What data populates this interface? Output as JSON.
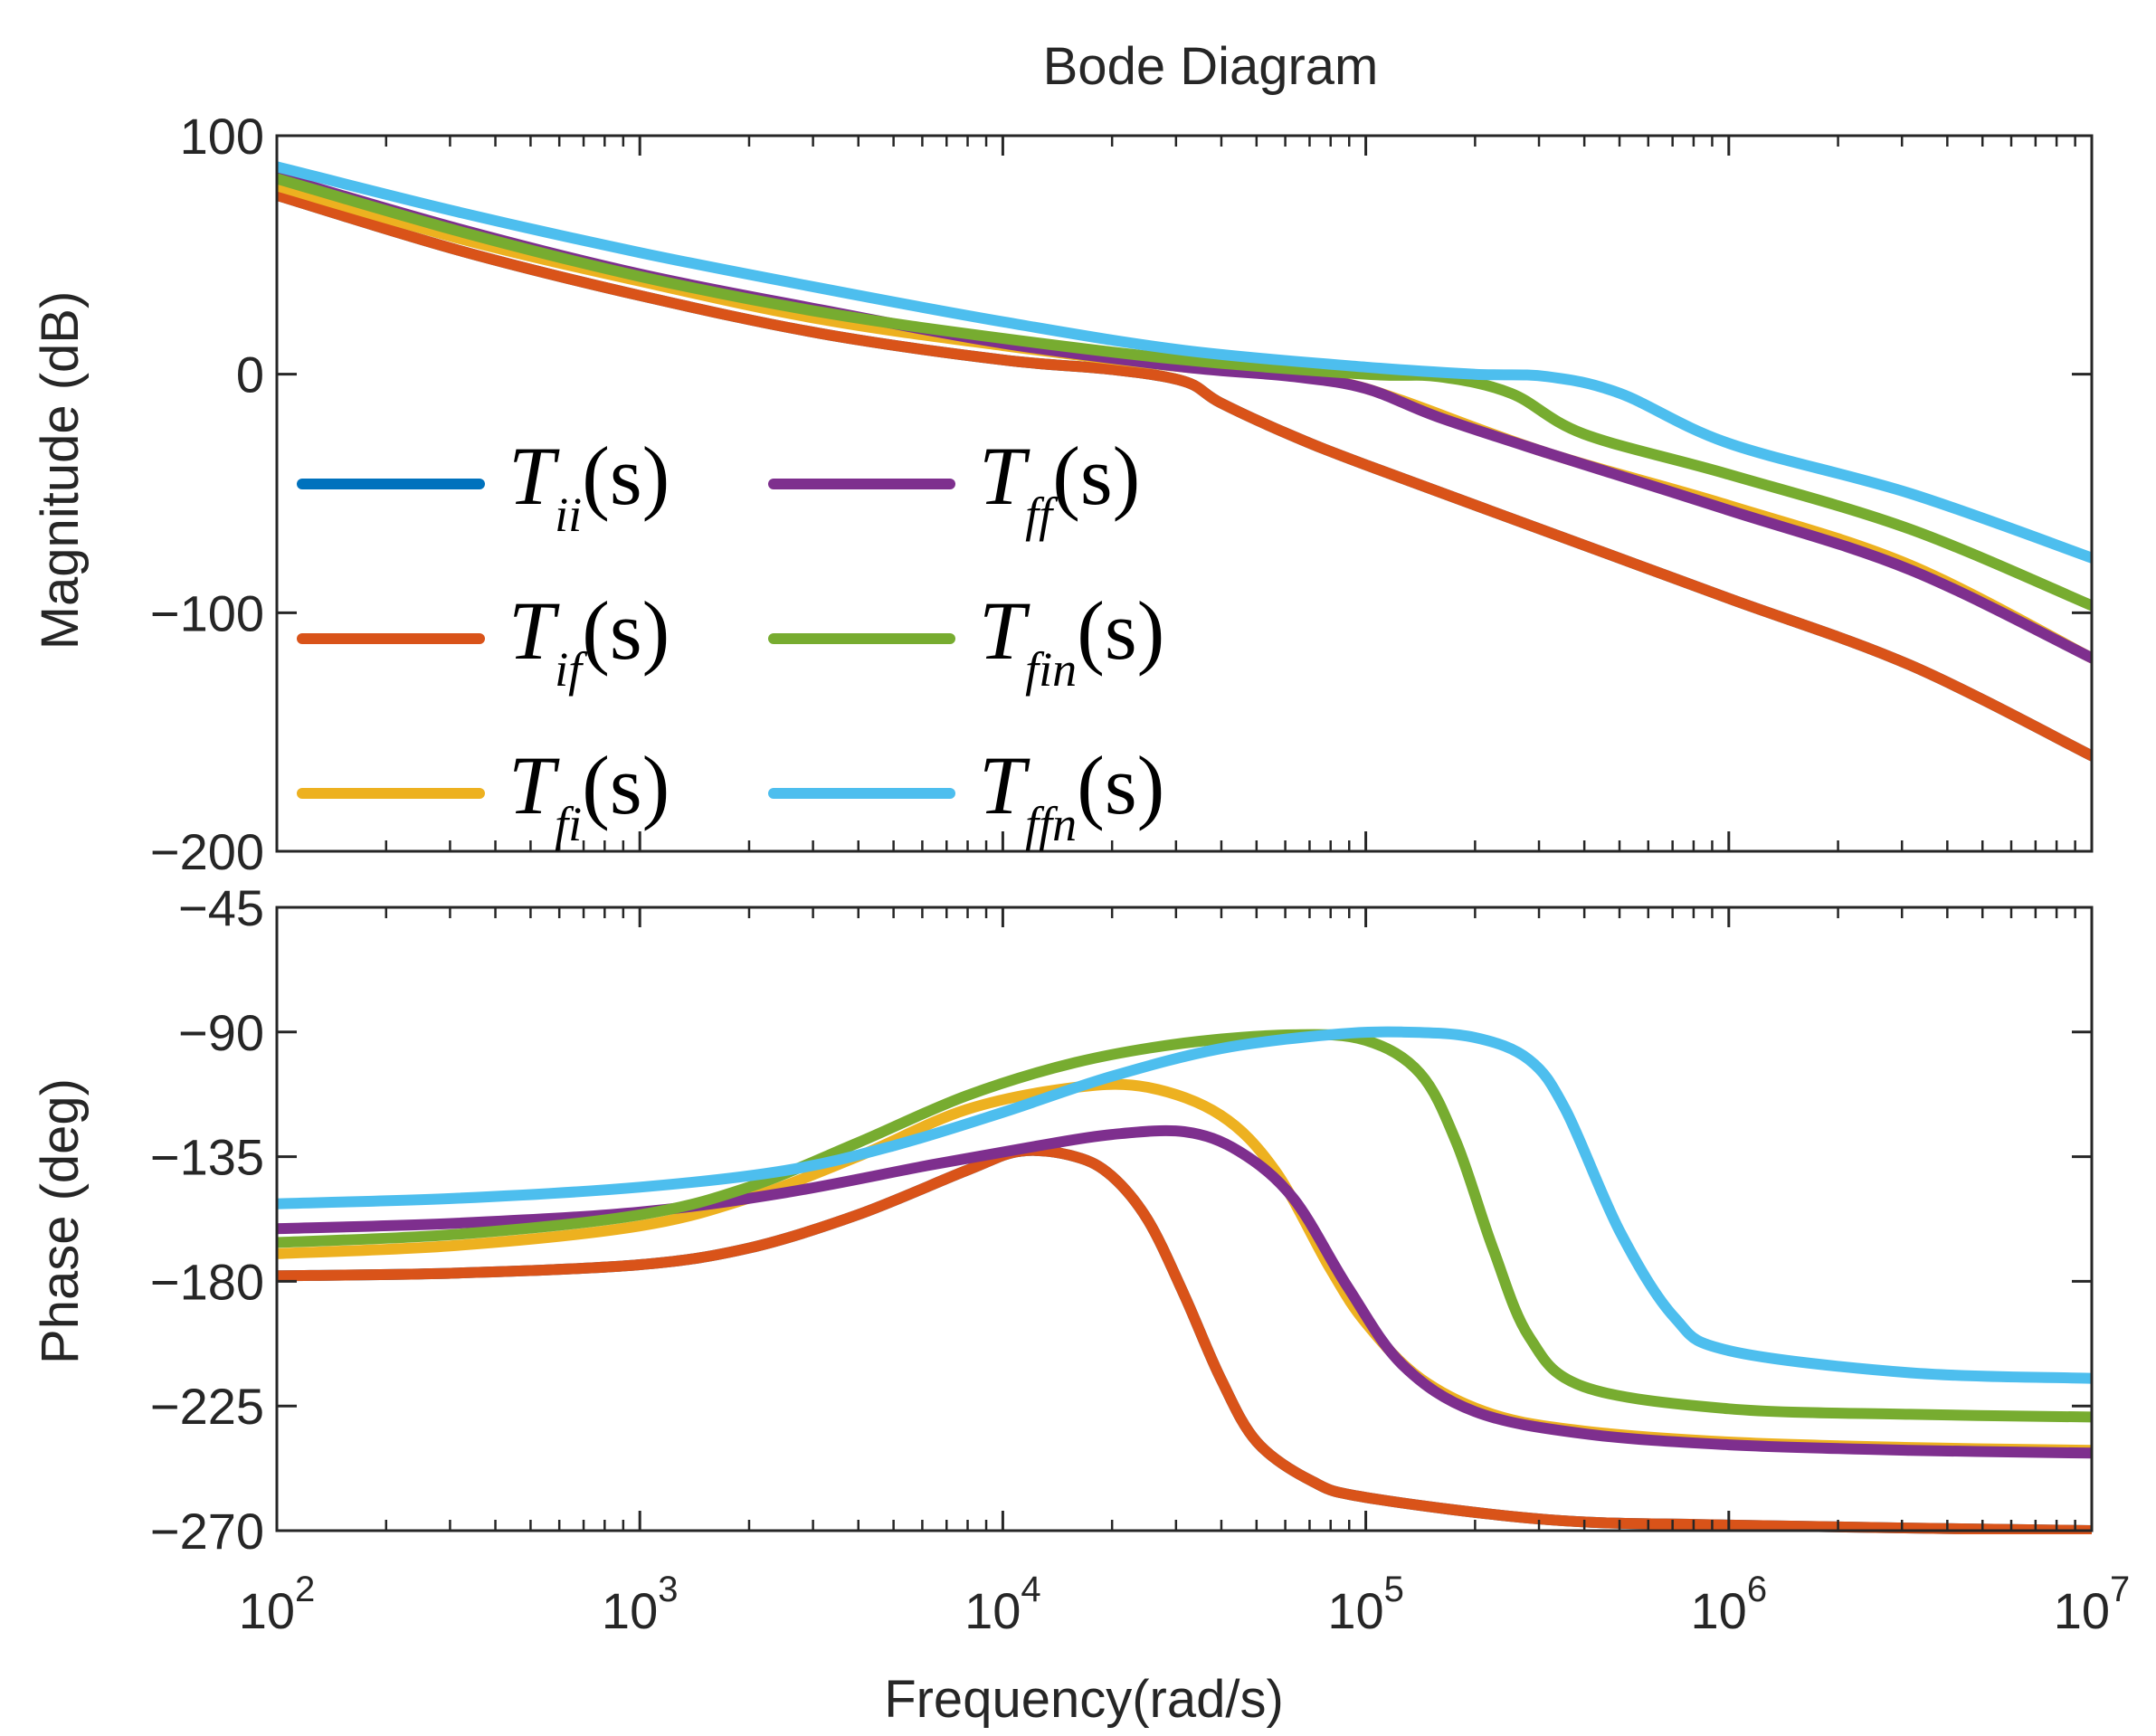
{
  "chart_data": {
    "type": "line",
    "title": "Bode Diagram",
    "xlabel": "Frequency(rad/s)",
    "xscale": "log",
    "xlim": [
      100,
      10000000
    ],
    "x_ticks": [
      {
        "base": "10",
        "exp": "2"
      },
      {
        "base": "10",
        "exp": "3"
      },
      {
        "base": "10",
        "exp": "4"
      },
      {
        "base": "10",
        "exp": "5"
      },
      {
        "base": "10",
        "exp": "6"
      },
      {
        "base": "10",
        "exp": "7"
      }
    ],
    "x_log_exponents": [
      2,
      7
    ],
    "colors": {
      "T_ii": "#0072BD",
      "T_if": "#D95319",
      "T_fi": "#EDB120",
      "T_ff": "#7E2F8E",
      "T_fin": "#77AC30",
      "T_ffn": "#4DBEEE"
    },
    "legend": {
      "placement": "inside-left of magnitude plot, two columns",
      "entries": [
        {
          "key": "T_ii",
          "symbol": "T",
          "sub": "ii",
          "arg": "(s)"
        },
        {
          "key": "T_if",
          "symbol": "T",
          "sub": "if",
          "arg": "(s)"
        },
        {
          "key": "T_fi",
          "symbol": "T",
          "sub": "fi",
          "arg": "(s)"
        },
        {
          "key": "T_ff",
          "symbol": "T",
          "sub": "ff",
          "arg": "(s)"
        },
        {
          "key": "T_fin",
          "symbol": "T",
          "sub": "fin",
          "arg": "(s)"
        },
        {
          "key": "T_ffn",
          "symbol": "T",
          "sub": "ffn",
          "arg": "(s)"
        }
      ]
    },
    "magnitude": {
      "ylabel": "Magnitude (dB)",
      "ylim": [
        -200,
        100
      ],
      "yticks": [
        100,
        0,
        -100,
        -200
      ],
      "ytick_labels": [
        "100",
        "0",
        "−100",
        "−200"
      ],
      "series": [
        {
          "key": "T_ii",
          "points": [
            [
              2,
              75
            ],
            [
              2.5,
              52
            ],
            [
              3,
              33
            ],
            [
              3.5,
              17
            ],
            [
              4,
              6
            ],
            [
              4.3,
              2
            ],
            [
              4.5,
              -3
            ],
            [
              4.6,
              -12
            ],
            [
              4.8,
              -26
            ],
            [
              5,
              -38
            ],
            [
              5.5,
              -66
            ],
            [
              6,
              -94
            ],
            [
              6.5,
              -122
            ],
            [
              7,
              -160
            ]
          ]
        },
        {
          "key": "T_if",
          "points": [
            [
              2,
              75
            ],
            [
              2.5,
              52
            ],
            [
              3,
              33
            ],
            [
              3.5,
              17
            ],
            [
              4,
              6
            ],
            [
              4.3,
              2
            ],
            [
              4.5,
              -3
            ],
            [
              4.6,
              -12
            ],
            [
              4.8,
              -26
            ],
            [
              5,
              -38
            ],
            [
              5.5,
              -66
            ],
            [
              6,
              -94
            ],
            [
              6.5,
              -122
            ],
            [
              7,
              -160
            ]
          ]
        },
        {
          "key": "T_fi",
          "points": [
            [
              2,
              79
            ],
            [
              2.5,
              57
            ],
            [
              3,
              39
            ],
            [
              3.5,
              23
            ],
            [
              4,
              12
            ],
            [
              4.5,
              3
            ],
            [
              4.8,
              0
            ],
            [
              4.95,
              -4
            ],
            [
              5.1,
              -11
            ],
            [
              5.5,
              -33
            ],
            [
              6,
              -55
            ],
            [
              6.5,
              -80
            ],
            [
              7,
              -119
            ]
          ]
        },
        {
          "key": "T_ff",
          "points": [
            [
              2,
              83
            ],
            [
              2.5,
              61
            ],
            [
              3,
              42
            ],
            [
              3.5,
              27
            ],
            [
              4,
              13
            ],
            [
              4.5,
              3
            ],
            [
              4.8,
              -1
            ],
            [
              5,
              -6
            ],
            [
              5.2,
              -18
            ],
            [
              5.5,
              -33
            ],
            [
              6,
              -57
            ],
            [
              6.5,
              -82
            ],
            [
              7,
              -119
            ]
          ]
        },
        {
          "key": "T_fin",
          "points": [
            [
              2,
              82
            ],
            [
              2.5,
              60
            ],
            [
              3,
              41
            ],
            [
              3.5,
              26
            ],
            [
              4,
              15
            ],
            [
              4.5,
              6
            ],
            [
              5,
              0
            ],
            [
              5.2,
              -1
            ],
            [
              5.4,
              -8
            ],
            [
              5.6,
              -25
            ],
            [
              6,
              -42
            ],
            [
              6.5,
              -65
            ],
            [
              7,
              -97
            ]
          ]
        },
        {
          "key": "T_ffn",
          "points": [
            [
              2,
              87
            ],
            [
              2.5,
              68
            ],
            [
              3,
              51
            ],
            [
              3.5,
              36
            ],
            [
              4,
              22
            ],
            [
              4.5,
              10
            ],
            [
              5,
              3
            ],
            [
              5.3,
              0
            ],
            [
              5.5,
              -1
            ],
            [
              5.7,
              -8
            ],
            [
              6,
              -29
            ],
            [
              6.5,
              -50
            ],
            [
              7,
              -77
            ]
          ]
        }
      ]
    },
    "phase": {
      "ylabel": "Phase (deg)",
      "ylim": [
        -270,
        -45
      ],
      "yticks": [
        -45,
        -90,
        -135,
        -180,
        -225,
        -270
      ],
      "ytick_labels": [
        "−45",
        "−90",
        "−135",
        "−180",
        "−225",
        "−270"
      ],
      "series": [
        {
          "key": "T_ii",
          "points": [
            [
              2,
              -178
            ],
            [
              2.5,
              -177
            ],
            [
              3,
              -174
            ],
            [
              3.3,
              -168
            ],
            [
              3.6,
              -156
            ],
            [
              3.9,
              -140
            ],
            [
              4.05,
              -133
            ],
            [
              4.2,
              -135
            ],
            [
              4.3,
              -142
            ],
            [
              4.4,
              -158
            ],
            [
              4.5,
              -185
            ],
            [
              4.6,
              -215
            ],
            [
              4.7,
              -238
            ],
            [
              4.85,
              -252
            ],
            [
              5,
              -258
            ],
            [
              5.5,
              -266
            ],
            [
              6,
              -268
            ],
            [
              7,
              -270
            ]
          ]
        },
        {
          "key": "T_if",
          "points": [
            [
              2,
              -178
            ],
            [
              2.5,
              -177
            ],
            [
              3,
              -174
            ],
            [
              3.3,
              -168
            ],
            [
              3.6,
              -156
            ],
            [
              3.9,
              -140
            ],
            [
              4.05,
              -133
            ],
            [
              4.2,
              -135
            ],
            [
              4.3,
              -142
            ],
            [
              4.4,
              -158
            ],
            [
              4.5,
              -185
            ],
            [
              4.6,
              -215
            ],
            [
              4.7,
              -238
            ],
            [
              4.85,
              -252
            ],
            [
              5,
              -258
            ],
            [
              5.5,
              -266
            ],
            [
              6,
              -268
            ],
            [
              7,
              -270
            ]
          ]
        },
        {
          "key": "T_fi",
          "points": [
            [
              2,
              -170
            ],
            [
              2.5,
              -167
            ],
            [
              3,
              -160
            ],
            [
              3.3,
              -150
            ],
            [
              3.6,
              -135
            ],
            [
              3.9,
              -118
            ],
            [
              4.2,
              -110
            ],
            [
              4.4,
              -110
            ],
            [
              4.6,
              -120
            ],
            [
              4.75,
              -140
            ],
            [
              4.9,
              -175
            ],
            [
              5,
              -195
            ],
            [
              5.15,
              -215
            ],
            [
              5.35,
              -228
            ],
            [
              5.6,
              -234
            ],
            [
              6,
              -238
            ],
            [
              6.5,
              -240
            ],
            [
              7,
              -241
            ]
          ]
        },
        {
          "key": "T_ff",
          "points": [
            [
              2,
              -161
            ],
            [
              2.5,
              -159
            ],
            [
              3,
              -155
            ],
            [
              3.4,
              -148
            ],
            [
              3.8,
              -138
            ],
            [
              4.1,
              -131
            ],
            [
              4.3,
              -127
            ],
            [
              4.5,
              -126
            ],
            [
              4.65,
              -133
            ],
            [
              4.8,
              -150
            ],
            [
              4.95,
              -182
            ],
            [
              5.1,
              -210
            ],
            [
              5.3,
              -227
            ],
            [
              5.6,
              -235
            ],
            [
              6,
              -239
            ],
            [
              6.5,
              -241
            ],
            [
              7,
              -242
            ]
          ]
        },
        {
          "key": "T_fin",
          "points": [
            [
              2,
              -166
            ],
            [
              2.5,
              -163
            ],
            [
              3,
              -156
            ],
            [
              3.3,
              -146
            ],
            [
              3.6,
              -130
            ],
            [
              3.9,
              -113
            ],
            [
              4.2,
              -101
            ],
            [
              4.5,
              -94
            ],
            [
              4.8,
              -91
            ],
            [
              5,
              -93
            ],
            [
              5.15,
              -105
            ],
            [
              5.25,
              -130
            ],
            [
              5.35,
              -168
            ],
            [
              5.45,
              -200
            ],
            [
              5.6,
              -218
            ],
            [
              6,
              -226
            ],
            [
              6.5,
              -228
            ],
            [
              7,
              -229
            ]
          ]
        },
        {
          "key": "T_ffn",
          "points": [
            [
              2,
              -152
            ],
            [
              2.5,
              -150
            ],
            [
              3,
              -146
            ],
            [
              3.4,
              -140
            ],
            [
              3.7,
              -131
            ],
            [
              4,
              -119
            ],
            [
              4.3,
              -106
            ],
            [
              4.6,
              -96
            ],
            [
              4.9,
              -91
            ],
            [
              5.1,
              -90
            ],
            [
              5.3,
              -92
            ],
            [
              5.45,
              -100
            ],
            [
              5.55,
              -118
            ],
            [
              5.7,
              -162
            ],
            [
              5.85,
              -193
            ],
            [
              6,
              -205
            ],
            [
              6.5,
              -213
            ],
            [
              7,
              -215
            ]
          ]
        }
      ]
    }
  }
}
